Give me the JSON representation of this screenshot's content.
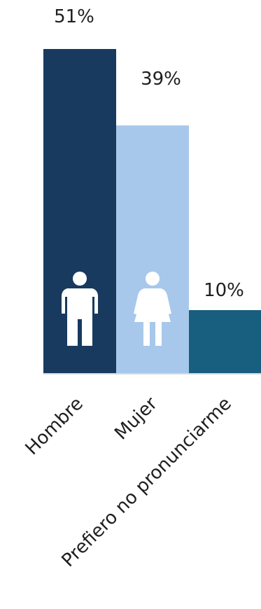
{
  "chart_data": {
    "type": "bar",
    "categories": [
      "Hombre",
      "Mujer",
      "Prefiero no pronunciarme"
    ],
    "values": [
      51,
      39,
      10
    ],
    "value_labels": [
      "51%",
      "39%",
      "10%"
    ],
    "colors": [
      "#183a5e",
      "#a7c8ea",
      "#175e7f"
    ],
    "icons": [
      "man-icon",
      "woman-icon",
      ""
    ],
    "ylim": [
      0,
      51
    ],
    "grid": false,
    "legend": "none"
  }
}
